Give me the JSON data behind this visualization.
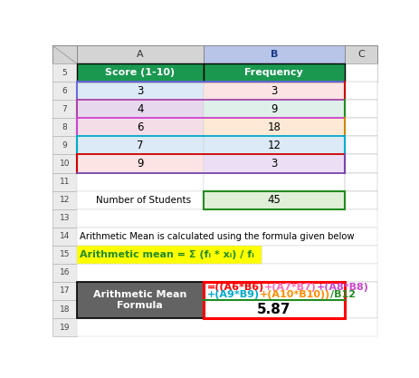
{
  "fig_width": 4.63,
  "fig_height": 4.17,
  "dpi": 100,
  "background": "#ffffff",
  "col_header_label_A": "Score (1-10)",
  "col_header_label_B": "Frequency",
  "col_header_bg": "#1a9850",
  "col_header_fg": "#ffffff",
  "data_rows": [
    {
      "score": "3",
      "freq": "3",
      "bg_A": "#dce9f7",
      "bg_B": "#fce4e4"
    },
    {
      "score": "4",
      "freq": "9",
      "bg_A": "#e8d8ee",
      "bg_B": "#dff0ea"
    },
    {
      "score": "6",
      "freq": "18",
      "bg_A": "#f5dde8",
      "bg_B": "#fde9d5"
    },
    {
      "score": "7",
      "freq": "12",
      "bg_A": "#dce9f7",
      "bg_B": "#dce9f7"
    },
    {
      "score": "9",
      "freq": "3",
      "bg_A": "#fce4e4",
      "bg_B": "#ecdff5"
    }
  ],
  "row_border_colors_top": [
    "#6a6adc",
    "#aa44aa",
    "#cc44cc",
    "#00aacc",
    "#cc0000"
  ],
  "row_border_colors_bot": [
    "#aa44aa",
    "#cc44cc",
    "#00aacc",
    "#cc0000",
    "#7744aa"
  ],
  "col_A_left_colors": [
    "#6a6adc",
    "#aa44aa",
    "#cc44cc",
    "#00aacc",
    "#cc0000"
  ],
  "col_B_right_colors": [
    "#cc0000",
    "#228B22",
    "#cc8800",
    "#00aacc",
    "#7744aa"
  ],
  "summary_label": "Number of Students",
  "summary_value": "45",
  "summary_bg_B": "#e0f0d8",
  "summary_border_B": "#228B22",
  "text_row14": "Arithmetic Mean is calculated using the formula given below",
  "formula_row15": "Arithmetic mean = Σ (fᵢ * xᵢ) / fᵢ",
  "formula_bg15": "#ffff00",
  "formula_text_color": "#228B22",
  "bottom_label_bg": "#636363",
  "bottom_label_fg": "#ffffff",
  "bottom_label_line1": "Arithmetic Mean",
  "bottom_label_line2": "Formula",
  "bottom_result_label": "Arithmetic Mean",
  "bottom_formula_border": "#ff0000",
  "bottom_divider_color": "#228B22",
  "formula_line1": [
    {
      "text": "=((A6*B6)",
      "color": "#ff0000"
    },
    {
      "text": "+(A7*B7)",
      "color": "#ff69b4"
    },
    {
      "text": "+(A8*B8)",
      "color": "#cc44cc"
    }
  ],
  "formula_line2": [
    {
      "text": "+(A9*B9)",
      "color": "#00aacc"
    },
    {
      "text": "+(A10*B10))",
      "color": "#ff8c00"
    },
    {
      "text": "/B12",
      "color": "#228B22"
    }
  ],
  "result_value": "5.87"
}
